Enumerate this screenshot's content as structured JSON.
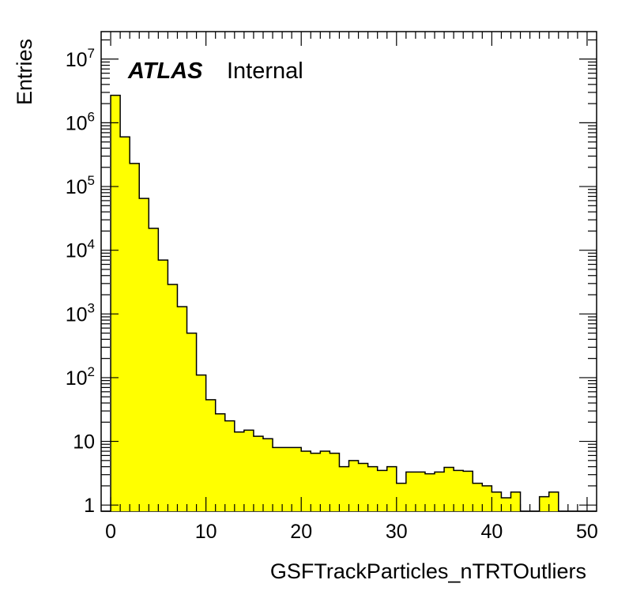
{
  "chart_data": {
    "type": "bar",
    "style": "histogram",
    "fill_color": "#ffff00",
    "line_color": "#000000",
    "xlabel": "GSFTrackParticles_nTRTOutliers",
    "ylabel": "Entries",
    "x_range": [
      -1,
      51
    ],
    "y_range": [
      0.8,
      27000000
    ],
    "y_scale": "log",
    "bin_width": 1,
    "x_ticks": [
      "0",
      "10",
      "20",
      "30",
      "40",
      "50"
    ],
    "y_ticks": [
      {
        "base": "1",
        "exp": ""
      },
      {
        "base": "10",
        "exp": ""
      },
      {
        "base": "10",
        "exp": "2"
      },
      {
        "base": "10",
        "exp": "3"
      },
      {
        "base": "10",
        "exp": "4"
      },
      {
        "base": "10",
        "exp": "5"
      },
      {
        "base": "10",
        "exp": "6"
      },
      {
        "base": "10",
        "exp": "7"
      }
    ],
    "bins_low_edge": [
      -1,
      0,
      1,
      2,
      3,
      4,
      5,
      6,
      7,
      8,
      9,
      10,
      11,
      12,
      13,
      14,
      15,
      16,
      17,
      18,
      19,
      20,
      21,
      22,
      23,
      24,
      25,
      26,
      27,
      28,
      29,
      30,
      31,
      32,
      33,
      34,
      35,
      36,
      37,
      38,
      39,
      40,
      41,
      42,
      43,
      44,
      45,
      46,
      47,
      48,
      49,
      50
    ],
    "values": [
      0,
      2700000,
      600000,
      230000,
      65000,
      22000,
      7000,
      2900,
      1300,
      500,
      110,
      45,
      27,
      21,
      14,
      15,
      12,
      11,
      8,
      8,
      8,
      7,
      6.5,
      7,
      6.5,
      4,
      5,
      4.5,
      4,
      3.5,
      4,
      2.2,
      3.3,
      3.3,
      3.1,
      3.3,
      3.9,
      3.5,
      3.4,
      2.2,
      2.0,
      1.6,
      1.3,
      1.6,
      0,
      0,
      1.35,
      1.6,
      0,
      0,
      0,
      0
    ],
    "annotations": {
      "experiment": "ATLAS",
      "status": "Internal"
    },
    "legend": "none",
    "grid": false
  }
}
